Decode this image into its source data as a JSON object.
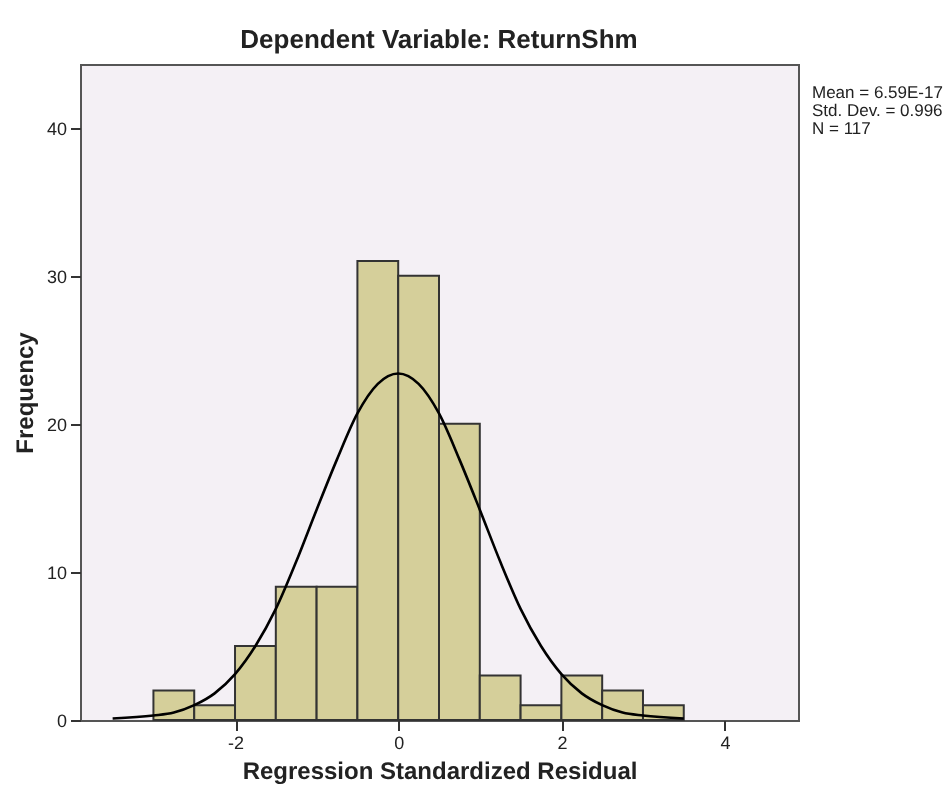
{
  "chart_data": {
    "type": "histogram",
    "title": "Dependent Variable: ReturnShm",
    "xlabel": "Regression Standardized Residual",
    "ylabel": "Frequency",
    "bins": [
      -3,
      -2.5,
      -2,
      -1.5,
      -1,
      -0.5,
      0,
      0.5,
      1,
      1.5,
      2,
      2.5,
      3,
      3.5
    ],
    "values": [
      2,
      1,
      5,
      9,
      9,
      31,
      30,
      20,
      3,
      1,
      3,
      2,
      1
    ],
    "color": "#d5cf9a",
    "series": [
      {
        "type": "line",
        "color": "#000000",
        "x": [
          -3.5,
          -3,
          -2.75,
          -2.5,
          -2.25,
          -2,
          -1.75,
          -1.5,
          -1.25,
          -1,
          -0.75,
          -0.5,
          -0.25,
          0,
          0.25,
          0.5,
          0.75,
          1,
          1.25,
          1.5,
          1.75,
          2,
          2.25,
          2.5,
          2.75,
          3,
          3.5
        ],
        "values": [
          0.1,
          0.3,
          0.5,
          1.0,
          1.8,
          3.1,
          5.0,
          7.5,
          10.7,
          14.2,
          17.6,
          20.7,
          22.7,
          23.4,
          22.7,
          20.7,
          17.6,
          14.2,
          10.7,
          7.5,
          5.0,
          3.1,
          1.8,
          1.0,
          0.5,
          0.3,
          0.1
        ]
      }
    ],
    "xlim": [
      -3.9,
      4.9
    ],
    "xticks": [
      -2,
      0,
      2,
      4
    ],
    "ylim": [
      0,
      44.3
    ],
    "yticks": [
      0,
      10,
      20,
      30,
      40
    ],
    "grid": false,
    "annotations": [
      "Mean = 6.59E-17",
      "Std. Dev. = 0.996",
      "N = 117"
    ]
  }
}
